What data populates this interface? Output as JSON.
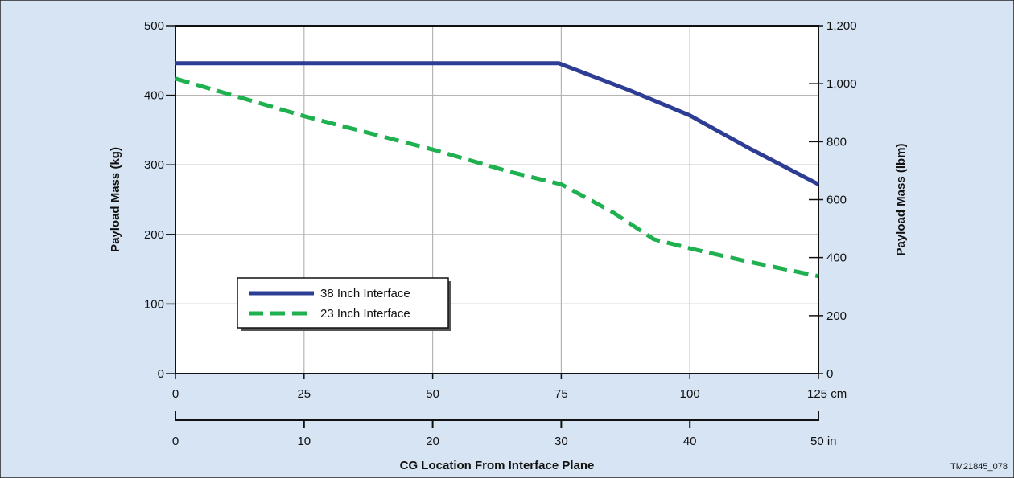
{
  "colors": {
    "panel_bg": "#d7e4f4",
    "plot_bg": "#ffffff",
    "grid": "#b5b5b5",
    "series_38": "#2e3d94",
    "series_23": "#1fb04f"
  },
  "figure_id": "TM21845_078",
  "chart_data": {
    "type": "line",
    "title": "",
    "xlabel": "CG Location From Interface Plane",
    "ylabel": "Payload Mass (kg)",
    "ylabel_right": "Payload Mass (lbm)",
    "xlim": [
      0,
      125
    ],
    "ylim": [
      0,
      500
    ],
    "x_ticks_cm": [
      0,
      25,
      50,
      75,
      100,
      125
    ],
    "x_ticks_cm_labels": [
      "0",
      "25",
      "50",
      "75",
      "100",
      "125 cm"
    ],
    "x_ticks_in": [
      0,
      10,
      20,
      30,
      40,
      50
    ],
    "x_ticks_in_labels": [
      "0",
      "10",
      "20",
      "30",
      "40",
      "50  in"
    ],
    "y_ticks_kg": [
      0,
      100,
      200,
      300,
      400,
      500
    ],
    "y_ticks_kg_labels": [
      "0",
      "100",
      "200",
      "300",
      "400",
      "500"
    ],
    "y_ticks_lbm": [
      0,
      200,
      400,
      600,
      800,
      1000,
      1200
    ],
    "y_ticks_lbm_labels": [
      "0",
      "200",
      "400",
      "600",
      "800",
      "1,000",
      "1,200"
    ],
    "grid": true,
    "legend_position": "lower-left",
    "series": [
      {
        "name": "38 Inch Interface",
        "style": "solid",
        "x": [
          0,
          74.5,
          88,
          100,
          112,
          125
        ],
        "y": [
          446,
          446,
          408,
          371,
          322,
          272
        ]
      },
      {
        "name": "23 Inch Interface",
        "style": "dashed",
        "x": [
          0,
          25,
          50,
          65,
          75,
          85,
          93,
          100,
          110,
          125
        ],
        "y": [
          424,
          370,
          322,
          290,
          272,
          232,
          193,
          180,
          163,
          140
        ]
      }
    ]
  }
}
